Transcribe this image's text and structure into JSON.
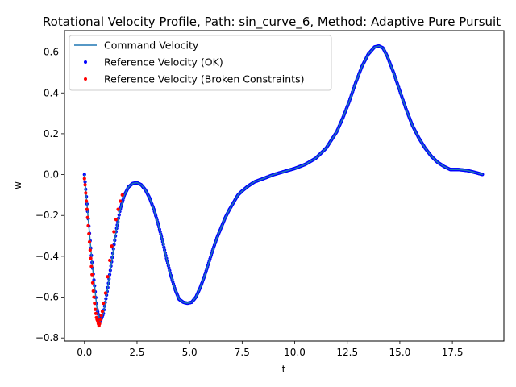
{
  "chart_data": {
    "type": "line",
    "title": "Rotational Velocity Profile, Path: sin_curve_6, Method: Adaptive Pure Pursuit",
    "xlabel": "t",
    "ylabel": "w",
    "xlim": [
      -0.95,
      19.95
    ],
    "ylim": [
      -0.815,
      0.705
    ],
    "xticks": [
      0.0,
      2.5,
      5.0,
      7.5,
      10.0,
      12.5,
      15.0,
      17.5
    ],
    "xtick_labels": [
      "0.0",
      "2.5",
      "5.0",
      "7.5",
      "10.0",
      "12.5",
      "15.0",
      "17.5"
    ],
    "yticks": [
      -0.8,
      -0.6,
      -0.4,
      -0.2,
      0.0,
      0.2,
      0.4,
      0.6
    ],
    "ytick_labels": [
      "−0.8",
      "−0.6",
      "−0.4",
      "−0.2",
      "0.0",
      "0.2",
      "0.4",
      "0.6"
    ],
    "grid": false,
    "legend_position": "top-left",
    "series": [
      {
        "name": "Command Velocity",
        "kind": "line",
        "color": "#1f77b4",
        "x": [
          0.0,
          0.35,
          0.6,
          0.75,
          0.9,
          1.1,
          1.3,
          1.5,
          1.7,
          1.9,
          2.1,
          2.3,
          2.5,
          2.7,
          2.9,
          3.1,
          3.3,
          3.5,
          3.7,
          3.9,
          4.1,
          4.3,
          4.5,
          4.7,
          4.9,
          5.1,
          5.3,
          5.5,
          5.7,
          5.9,
          6.1,
          6.3,
          6.5,
          6.7,
          6.9,
          7.1,
          7.3,
          7.5,
          7.8,
          8.1,
          8.5,
          9.0,
          9.5,
          10.0,
          10.5,
          11.0,
          11.5,
          12.0,
          12.3,
          12.6,
          12.9,
          13.2,
          13.5,
          13.8,
          14.0,
          14.2,
          14.4,
          14.7,
          15.0,
          15.3,
          15.6,
          15.9,
          16.2,
          16.5,
          16.8,
          17.1,
          17.4,
          17.8,
          18.2,
          18.6,
          18.95
        ],
        "y": [
          0.0,
          -0.42,
          -0.66,
          -0.72,
          -0.68,
          -0.56,
          -0.42,
          -0.28,
          -0.17,
          -0.1,
          -0.06,
          -0.043,
          -0.04,
          -0.05,
          -0.075,
          -0.115,
          -0.17,
          -0.24,
          -0.32,
          -0.41,
          -0.49,
          -0.56,
          -0.61,
          -0.625,
          -0.63,
          -0.625,
          -0.6,
          -0.555,
          -0.5,
          -0.435,
          -0.37,
          -0.31,
          -0.26,
          -0.21,
          -0.17,
          -0.135,
          -0.1,
          -0.08,
          -0.055,
          -0.035,
          -0.02,
          0.0,
          0.015,
          0.03,
          0.05,
          0.08,
          0.13,
          0.21,
          0.28,
          0.36,
          0.45,
          0.53,
          0.59,
          0.625,
          0.63,
          0.62,
          0.58,
          0.5,
          0.41,
          0.32,
          0.24,
          0.18,
          0.13,
          0.09,
          0.06,
          0.04,
          0.025,
          0.025,
          0.02,
          0.01,
          0.0
        ]
      },
      {
        "name": "Reference Velocity (OK)",
        "kind": "scatter",
        "color": "#0000ff"
      },
      {
        "name": "Reference Velocity (Broken Constraints)",
        "kind": "scatter",
        "color": "#ff0000",
        "x": [
          0.0,
          0.03,
          0.06,
          0.09,
          0.12,
          0.15,
          0.18,
          0.21,
          0.24,
          0.27,
          0.3,
          0.33,
          0.36,
          0.39,
          0.42,
          0.45,
          0.48,
          0.51,
          0.54,
          0.57,
          0.6,
          0.63,
          0.66,
          0.69,
          0.72,
          0.75,
          0.8,
          0.85,
          0.9,
          1.0,
          1.1,
          1.2,
          1.3,
          1.4,
          1.5,
          1.6,
          1.7,
          1.8
        ],
        "y": [
          -0.02,
          -0.05,
          -0.09,
          -0.13,
          -0.17,
          -0.21,
          -0.25,
          -0.29,
          -0.33,
          -0.37,
          -0.41,
          -0.45,
          -0.49,
          -0.53,
          -0.57,
          -0.6,
          -0.63,
          -0.66,
          -0.68,
          -0.7,
          -0.71,
          -0.72,
          -0.73,
          -0.74,
          -0.73,
          -0.71,
          -0.69,
          -0.67,
          -0.63,
          -0.58,
          -0.5,
          -0.42,
          -0.35,
          -0.28,
          -0.22,
          -0.17,
          -0.13,
          -0.1
        ]
      }
    ]
  }
}
